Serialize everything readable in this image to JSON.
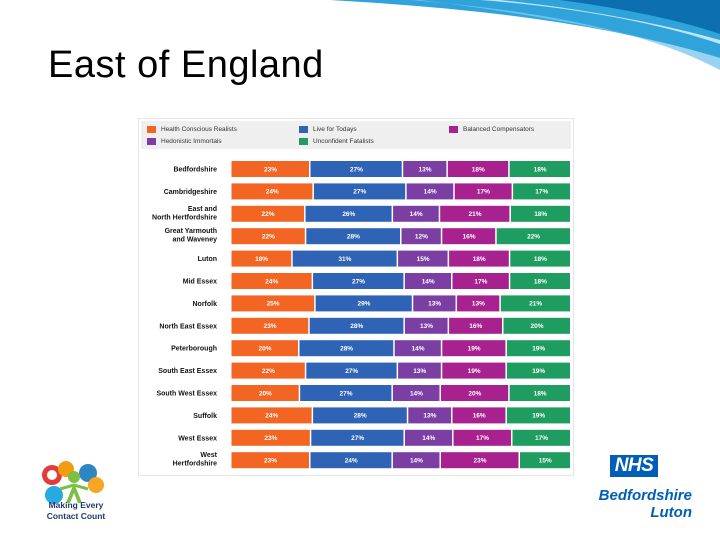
{
  "slide": {
    "title": "East of England",
    "mecc_text": "Making Every Contact Count",
    "nhs_logo_text": "NHS",
    "org_name_line1": "Bedfordshire",
    "org_name_line2": "Luton",
    "colors": {
      "brand_blue": "#005eb8",
      "swoosh": "#1a9ad6",
      "navy": "#1f3a6d"
    }
  },
  "chart_data": {
    "type": "bar",
    "stacked": true,
    "percent_stacked": true,
    "orientation": "horizontal",
    "categories": [
      "Bedfordshire",
      "Cambridgeshire",
      "East and North Hertfordshire",
      "Great Yarmouth and Waveney",
      "Luton",
      "Mid Essex",
      "Norfolk",
      "North East Essex",
      "Peterborough",
      "South East Essex",
      "South West Essex",
      "Suffolk",
      "West Essex",
      "West Hertfordshire"
    ],
    "series": [
      {
        "name": "Health Conscious Realists",
        "color": "#f26522",
        "values": [
          23,
          24,
          22,
          22,
          18,
          24,
          25,
          23,
          20,
          22,
          20,
          24,
          23,
          23
        ]
      },
      {
        "name": "Live for Todays",
        "color": "#2e63b5",
        "values": [
          27,
          27,
          26,
          28,
          31,
          27,
          29,
          28,
          28,
          27,
          27,
          28,
          27,
          24
        ]
      },
      {
        "name": "Hedonistic Immortals",
        "color": "#7b3fa4",
        "values": [
          13,
          14,
          14,
          12,
          15,
          14,
          13,
          13,
          14,
          13,
          14,
          13,
          14,
          14
        ]
      },
      {
        "name": "Balanced Compensators",
        "color": "#a7218f",
        "values": [
          18,
          17,
          21,
          16,
          18,
          17,
          13,
          16,
          19,
          19,
          20,
          16,
          17,
          23
        ]
      },
      {
        "name": "Unconfident Fatalists",
        "color": "#1f9c60",
        "values": [
          18,
          17,
          18,
          22,
          18,
          18,
          21,
          20,
          19,
          19,
          18,
          19,
          17,
          15
        ]
      }
    ],
    "legend": {
      "placement": "top",
      "order": [
        "Health Conscious Realists",
        "Live for Todays",
        "Balanced Compensators",
        "Hedonistic Immortals",
        "Unconfident Fatalists"
      ]
    },
    "value_suffix": "%",
    "grid": false
  }
}
